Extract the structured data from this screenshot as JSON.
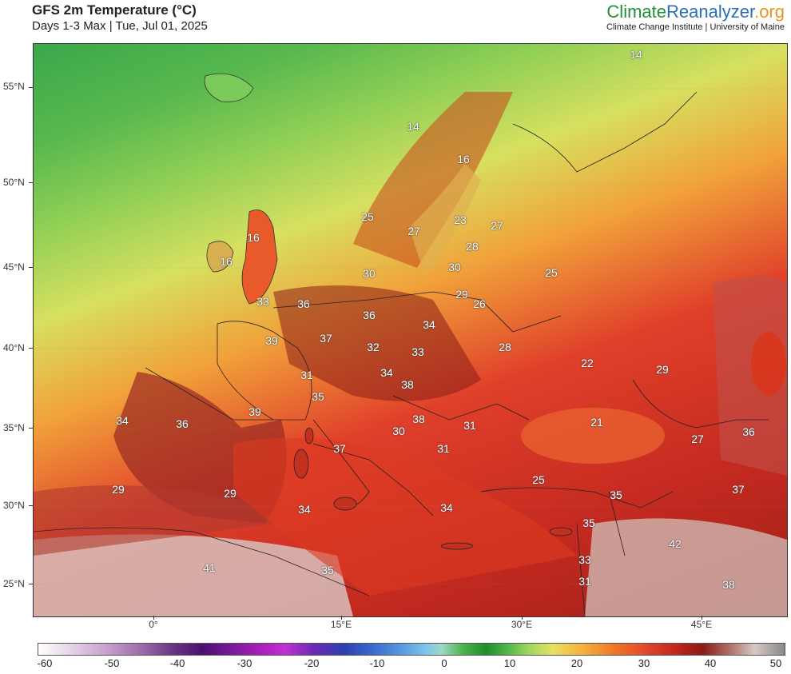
{
  "header": {
    "title": "GFS 2m Temperature (°C)",
    "subtitle": "Days 1-3 Max | Tue, Jul 01, 2025",
    "brand_part1": "Climate",
    "brand_part2": "Reanalyzer",
    "brand_part3": ".org",
    "brand_sub": "Climate Change Institute | University of Maine"
  },
  "axes": {
    "lat_labels": [
      "55°N",
      "50°N",
      "45°N",
      "40°N",
      "35°N",
      "30°N",
      "25°N"
    ],
    "lon_labels": [
      "0°",
      "15°E",
      "30°E",
      "45°E"
    ]
  },
  "temperature_labels": [
    "14",
    "14",
    "16",
    "16",
    "16",
    "25",
    "27",
    "23",
    "27",
    "28",
    "30",
    "30",
    "33",
    "36",
    "36",
    "29",
    "26",
    "25",
    "39",
    "37",
    "32",
    "34",
    "34",
    "33",
    "28",
    "22",
    "29",
    "31",
    "38",
    "35",
    "39",
    "34",
    "36",
    "38",
    "30",
    "31",
    "21",
    "27",
    "36",
    "37",
    "31",
    "29",
    "29",
    "34",
    "25",
    "35",
    "37",
    "34",
    "35",
    "33",
    "42",
    "41",
    "35",
    "31",
    "38"
  ],
  "colorbar": {
    "ticks": [
      "-60",
      "-50",
      "-40",
      "-30",
      "-20",
      "-10",
      "0",
      "10",
      "20",
      "30",
      "40",
      "50"
    ]
  },
  "colors": {
    "cool_green": "#3aa84a",
    "warm_red": "#c42a20",
    "hot_dark": "#8a1a14"
  }
}
